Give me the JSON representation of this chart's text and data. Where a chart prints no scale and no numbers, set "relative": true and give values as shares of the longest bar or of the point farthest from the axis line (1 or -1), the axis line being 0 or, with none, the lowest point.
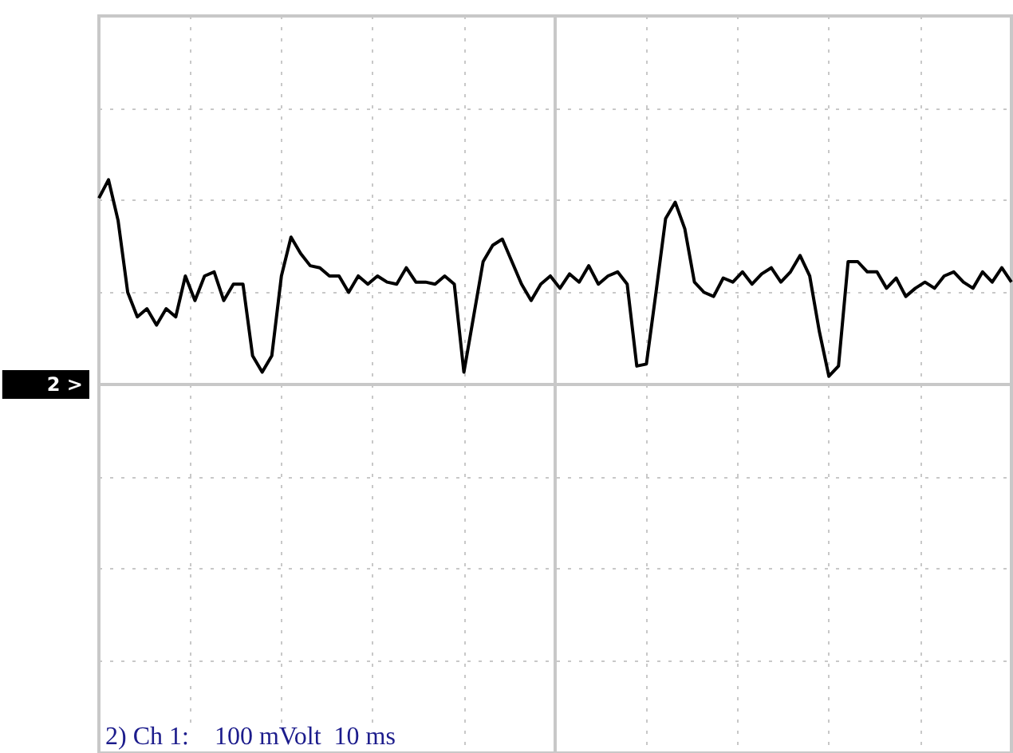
{
  "chart_data": {
    "type": "line",
    "relative": true,
    "grid": true,
    "marker": "none",
    "line_style": "solid",
    "categories": [
      null,
      null,
      null,
      null,
      null,
      null,
      null,
      null,
      null,
      null,
      null,
      null,
      null,
      null,
      null,
      null,
      null,
      null,
      null,
      null,
      null,
      null,
      null,
      null,
      null,
      null,
      null,
      null,
      null,
      null,
      null,
      null,
      null,
      null,
      null,
      null,
      null,
      null,
      null,
      null,
      null,
      null,
      null,
      null,
      null,
      null,
      null,
      null,
      null,
      null,
      null,
      null,
      null,
      null,
      null,
      null,
      null,
      null,
      null,
      null,
      null,
      null,
      null,
      null,
      null,
      null,
      null,
      null,
      null,
      null,
      null,
      null,
      null,
      null,
      null,
      null,
      null,
      null,
      null,
      null,
      null,
      null,
      null,
      null,
      null,
      null,
      null,
      null,
      null,
      null,
      null,
      null,
      null,
      null,
      null,
      null
    ],
    "series": [
      {
        "color": "#000000",
        "values": [
          0.91,
          1.0,
          0.8,
          0.45,
          0.33,
          0.37,
          0.29,
          0.37,
          0.33,
          0.53,
          0.41,
          0.53,
          0.55,
          0.41,
          0.49,
          0.49,
          0.14,
          0.06,
          0.14,
          0.53,
          0.72,
          0.64,
          0.58,
          0.57,
          0.53,
          0.53,
          0.45,
          0.53,
          0.49,
          0.53,
          0.5,
          0.49,
          0.57,
          0.5,
          0.5,
          0.49,
          0.53,
          0.49,
          0.06,
          0.33,
          0.6,
          0.68,
          0.71,
          0.6,
          0.49,
          0.41,
          0.49,
          0.53,
          0.47,
          0.54,
          0.5,
          0.58,
          0.49,
          0.53,
          0.55,
          0.49,
          0.09,
          0.1,
          0.45,
          0.81,
          0.89,
          0.76,
          0.5,
          0.45,
          0.43,
          0.52,
          0.5,
          0.55,
          0.49,
          0.54,
          0.57,
          0.5,
          0.55,
          0.63,
          0.53,
          0.26,
          0.04,
          0.09,
          0.6,
          0.6,
          0.55,
          0.55,
          0.47,
          0.52,
          0.43,
          0.47,
          0.5,
          0.47,
          0.53,
          0.55,
          0.5,
          0.47,
          0.55,
          0.5,
          0.57,
          0.5
        ]
      }
    ],
    "annotations": [
      "2 >",
      "2) Ch 1:    100 mVolt  10 ms"
    ]
  }
}
